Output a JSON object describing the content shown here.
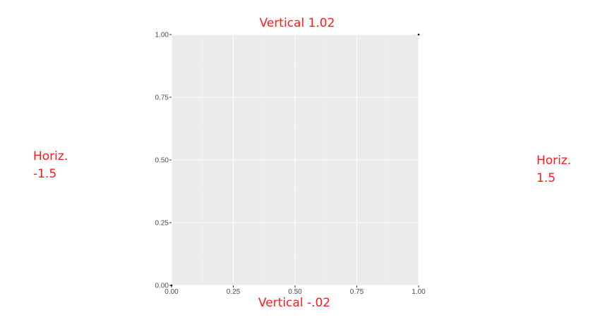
{
  "chart_data": {
    "type": "scatter",
    "x": [
      0,
      1
    ],
    "y": [
      0,
      1
    ],
    "xlim": [
      0,
      1
    ],
    "ylim": [
      0,
      1
    ],
    "xticks": [
      "0.00",
      "0.25",
      "0.50",
      "0.75",
      "1.00"
    ],
    "yticks": [
      "0.00",
      "0.25",
      "0.50",
      "0.75",
      "1.00"
    ],
    "grid": true,
    "panel_color": "#ebebeb",
    "annotation_color": "#ff1a1a",
    "annotations": {
      "top": "Vertical 1.02",
      "bottom": "Vertical -.02",
      "left": "Horiz.\n-1.5",
      "right": "Horiz.\n1.5"
    }
  }
}
